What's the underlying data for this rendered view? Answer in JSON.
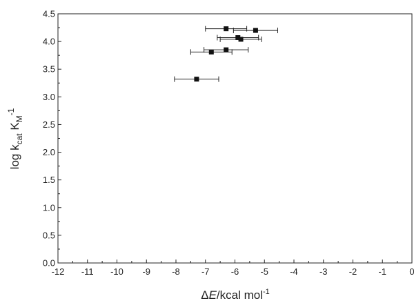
{
  "chart_data": {
    "type": "scatter",
    "title": "",
    "xlabel": {
      "delta": "Δ",
      "E": "E",
      "rest": "/kcal mol",
      "sup": "-1"
    },
    "ylabel": {
      "pre": "log k",
      "sub1": "cat",
      "mid": " K",
      "sub2": "M",
      "sup": "-1"
    },
    "xlim": [
      -12,
      0
    ],
    "ylim": [
      0,
      4.5
    ],
    "xticks": [
      "-12",
      "-11",
      "-10",
      "-9",
      "-8",
      "-7",
      "-6",
      "-5",
      "-4",
      "-3",
      "-2",
      "-1",
      "0"
    ],
    "yticks": [
      "0.0",
      "0.5",
      "1.0",
      "1.5",
      "2.0",
      "2.5",
      "3.0",
      "3.5",
      "4.0",
      "4.5"
    ],
    "grid": false,
    "marker": "square",
    "colors": {
      "marker": "#111111",
      "axis": "#222222",
      "errorbar": "#222222"
    },
    "points": [
      {
        "x": -7.3,
        "y": 3.32,
        "xerr": 0.75
      },
      {
        "x": -6.8,
        "y": 3.81,
        "xerr": 0.7
      },
      {
        "x": -6.3,
        "y": 3.85,
        "xerr": 0.75
      },
      {
        "x": -6.3,
        "y": 4.23,
        "xerr": 0.7
      },
      {
        "x": -5.9,
        "y": 4.07,
        "xerr": 0.7
      },
      {
        "x": -5.8,
        "y": 4.04,
        "xerr": 0.7
      },
      {
        "x": -5.3,
        "y": 4.2,
        "xerr": 0.75
      }
    ]
  }
}
